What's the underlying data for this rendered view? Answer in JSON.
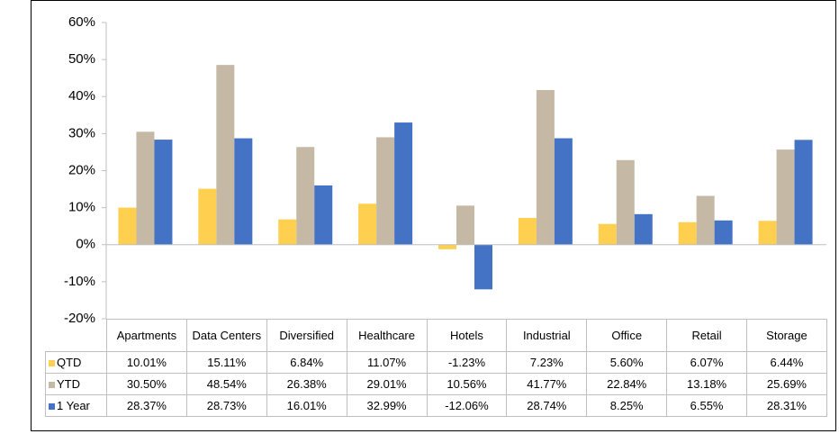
{
  "chart_data": {
    "type": "bar",
    "categories": [
      "Apartments",
      "Data Centers",
      "Diversified",
      "Healthcare",
      "Hotels",
      "Industrial",
      "Office",
      "Retail",
      "Storage"
    ],
    "series": [
      {
        "name": "QTD",
        "color": "#ffcf4f",
        "values": [
          10.01,
          15.11,
          6.84,
          11.07,
          -1.23,
          7.23,
          5.6,
          6.07,
          6.44
        ],
        "value_labels": [
          "10.01%",
          "15.11%",
          "6.84%",
          "11.07%",
          "-1.23%",
          "7.23%",
          "5.60%",
          "6.07%",
          "6.44%"
        ]
      },
      {
        "name": "YTD",
        "color": "#c5b9a6",
        "values": [
          30.5,
          48.54,
          26.38,
          29.01,
          10.56,
          41.77,
          22.84,
          13.18,
          25.69
        ],
        "value_labels": [
          "30.50%",
          "48.54%",
          "26.38%",
          "29.01%",
          "10.56%",
          "41.77%",
          "22.84%",
          "13.18%",
          "25.69%"
        ]
      },
      {
        "name": "1 Year",
        "color": "#4472c4",
        "values": [
          28.37,
          28.73,
          16.01,
          32.99,
          -12.06,
          28.74,
          8.25,
          6.55,
          28.31
        ],
        "value_labels": [
          "28.37%",
          "28.73%",
          "16.01%",
          "32.99%",
          "-12.06%",
          "28.74%",
          "8.25%",
          "6.55%",
          "28.31%"
        ]
      }
    ],
    "ylim": [
      -20,
      60
    ],
    "yticks": [
      {
        "value": -20,
        "label": "-20%"
      },
      {
        "value": -10,
        "label": "-10%"
      },
      {
        "value": 0,
        "label": "0%"
      },
      {
        "value": 10,
        "label": "10%"
      },
      {
        "value": 20,
        "label": "20%"
      },
      {
        "value": 30,
        "label": "30%"
      },
      {
        "value": 40,
        "label": "40%"
      },
      {
        "value": 50,
        "label": "50%"
      },
      {
        "value": 60,
        "label": "60%"
      }
    ],
    "grid": false,
    "legend": "table"
  }
}
